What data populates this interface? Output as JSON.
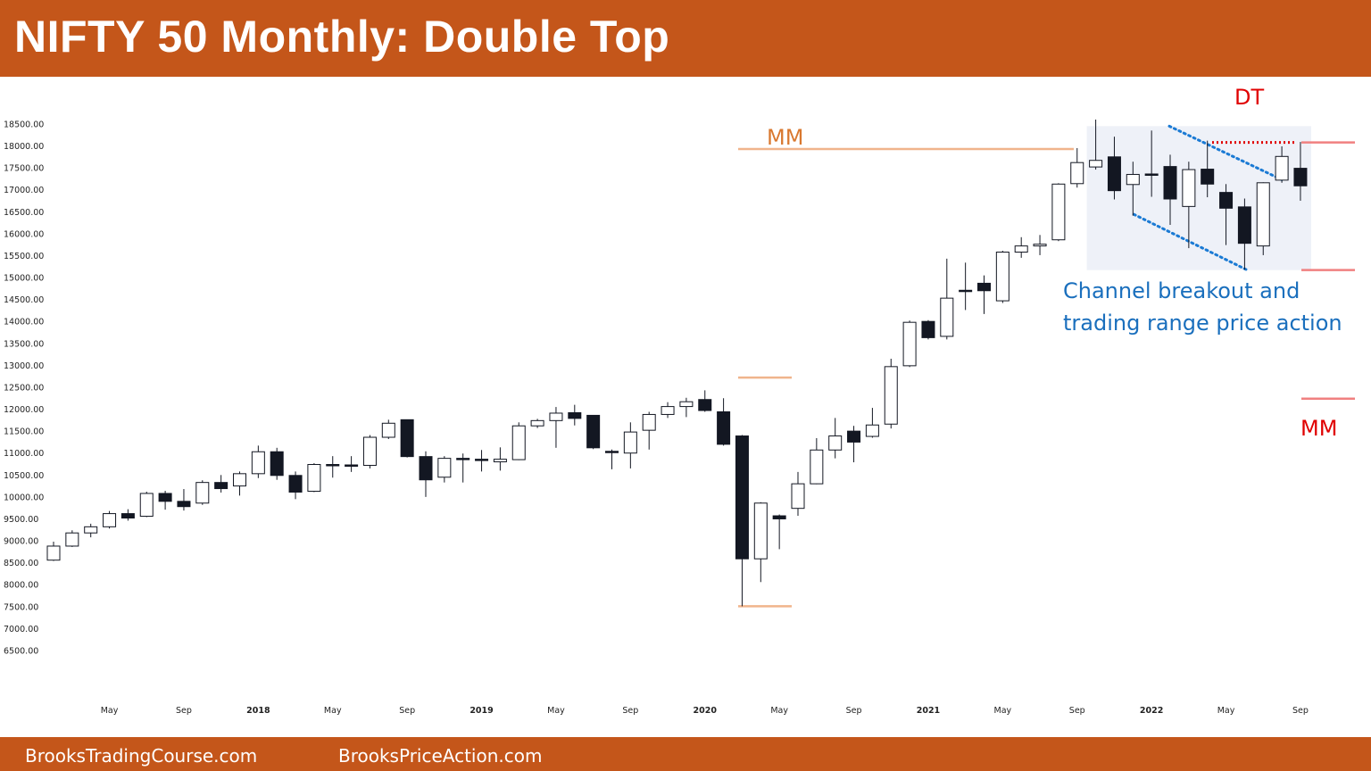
{
  "header": {
    "title": "NIFTY 50 Monthly: Double Top"
  },
  "footer": {
    "left": "BrooksTradingCourse.com",
    "right": "BrooksPriceAction.com"
  },
  "colors": {
    "bar_bg": "#c4561a",
    "bear_body": "#131722",
    "bull_body": "#ffffff",
    "mm_orange": "#f0b48c",
    "mm_red": "#f08080",
    "channel_blue": "#1a7ad4",
    "dt_red": "#e00000",
    "annotation_blue": "#1a6fbd",
    "range_box": "#eef1f8"
  },
  "chart_data": {
    "type": "candlestick",
    "timeframe": "monthly",
    "y_ticks": [
      "6500.00",
      "7000.00",
      "7500.00",
      "8000.00",
      "8500.00",
      "9000.00",
      "9500.00",
      "10000.00",
      "10500.00",
      "11000.00",
      "11500.00",
      "12000.00",
      "12500.00",
      "13000.00",
      "13500.00",
      "14000.00",
      "14500.00",
      "15000.00",
      "15500.00",
      "16000.00",
      "16500.00",
      "17000.00",
      "17500.00",
      "18000.00",
      "18500.00"
    ],
    "ylim": [
      6350,
      18600
    ],
    "x_ticks": [
      {
        "label": "May",
        "index": 3
      },
      {
        "label": "Sep",
        "index": 7
      },
      {
        "label": "2018",
        "index": 11
      },
      {
        "label": "May",
        "index": 15
      },
      {
        "label": "Sep",
        "index": 19
      },
      {
        "label": "2019",
        "index": 23
      },
      {
        "label": "May",
        "index": 27
      },
      {
        "label": "Sep",
        "index": 31
      },
      {
        "label": "2020",
        "index": 35
      },
      {
        "label": "May",
        "index": 39
      },
      {
        "label": "Sep",
        "index": 43
      },
      {
        "label": "2021",
        "index": 47
      },
      {
        "label": "May",
        "index": 51
      },
      {
        "label": "Sep",
        "index": 55
      },
      {
        "label": "2022",
        "index": 59
      },
      {
        "label": "May",
        "index": 63
      },
      {
        "label": "Sep",
        "index": 67
      }
    ],
    "candles": [
      [
        8560,
        8980,
        8540,
        8880
      ],
      [
        8880,
        9240,
        8860,
        9180
      ],
      [
        9180,
        9390,
        9080,
        9320
      ],
      [
        9320,
        9680,
        9280,
        9620
      ],
      [
        9620,
        9720,
        9460,
        9520
      ],
      [
        9560,
        10120,
        9540,
        10080
      ],
      [
        10080,
        10140,
        9710,
        9900
      ],
      [
        9900,
        10180,
        9690,
        9780
      ],
      [
        9860,
        10380,
        9820,
        10330
      ],
      [
        10330,
        10500,
        10100,
        10190
      ],
      [
        10250,
        10580,
        10030,
        10530
      ],
      [
        10530,
        11170,
        10430,
        11030
      ],
      [
        11030,
        11120,
        10390,
        10490
      ],
      [
        10490,
        10580,
        9950,
        10110
      ],
      [
        10130,
        10770,
        10110,
        10740
      ],
      [
        10740,
        10930,
        10440,
        10710
      ],
      [
        10730,
        10930,
        10570,
        10720
      ],
      [
        10720,
        11410,
        10650,
        11360
      ],
      [
        11360,
        11760,
        11320,
        11680
      ],
      [
        11760,
        11760,
        10900,
        10920
      ],
      [
        10920,
        11040,
        10000,
        10390
      ],
      [
        10450,
        10930,
        10330,
        10880
      ],
      [
        10880,
        10990,
        10330,
        10860
      ],
      [
        10860,
        11070,
        10580,
        10840
      ],
      [
        10800,
        11130,
        10600,
        10860
      ],
      [
        10850,
        11700,
        10840,
        11620
      ],
      [
        11620,
        11780,
        11570,
        11740
      ],
      [
        11740,
        12050,
        11120,
        11910
      ],
      [
        11920,
        12100,
        11630,
        11790
      ],
      [
        11860,
        11860,
        11090,
        11120
      ],
      [
        11040,
        11080,
        10630,
        11020
      ],
      [
        11000,
        11700,
        10650,
        11480
      ],
      [
        11520,
        11940,
        11080,
        11880
      ],
      [
        11880,
        12160,
        11800,
        12060
      ],
      [
        12060,
        12260,
        11820,
        12170
      ],
      [
        12220,
        12430,
        11940,
        11970
      ],
      [
        11940,
        12250,
        11170,
        11200
      ],
      [
        11390,
        11410,
        7510,
        8590
      ],
      [
        8590,
        9880,
        8060,
        9860
      ],
      [
        9570,
        9600,
        8810,
        9500
      ],
      [
        9740,
        10570,
        9570,
        10300
      ],
      [
        10300,
        11340,
        10290,
        11070
      ],
      [
        11070,
        11800,
        10880,
        11390
      ],
      [
        11500,
        11620,
        10790,
        11250
      ],
      [
        11380,
        12030,
        11350,
        11640
      ],
      [
        11660,
        13150,
        11560,
        12970
      ],
      [
        12990,
        14020,
        12960,
        13980
      ],
      [
        14000,
        14030,
        13590,
        13630
      ],
      [
        13660,
        15430,
        13590,
        14530
      ],
      [
        14710,
        15340,
        14260,
        14690
      ],
      [
        14870,
        15050,
        14170,
        14700
      ],
      [
        14470,
        15610,
        14420,
        15580
      ],
      [
        15580,
        15920,
        15450,
        15720
      ],
      [
        15720,
        15970,
        15510,
        15760
      ],
      [
        15860,
        17150,
        15830,
        17130
      ],
      [
        17140,
        17950,
        17050,
        17620
      ],
      [
        17520,
        18600,
        17460,
        17670
      ],
      [
        17750,
        18210,
        16780,
        16980
      ],
      [
        17120,
        17640,
        16410,
        17350
      ],
      [
        17360,
        18350,
        16840,
        17340
      ],
      [
        17530,
        17800,
        16200,
        16790
      ],
      [
        16620,
        17640,
        15670,
        17460
      ],
      [
        17470,
        18120,
        16830,
        17130
      ],
      [
        16940,
        17130,
        15740,
        16580
      ],
      [
        16610,
        16800,
        15180,
        15780
      ],
      [
        15720,
        17170,
        15510,
        17160
      ],
      [
        17220,
        17990,
        17160,
        17760
      ],
      [
        17490,
        18090,
        16750,
        17090
      ]
    ],
    "annotations": {
      "mm_top_label": "MM",
      "mm_bottom_label": "MM",
      "dt_label": "DT",
      "note_line1": "Channel breakout and",
      "note_line2": "trading range price action",
      "mm_top_level": 17930,
      "mm_lower_level": 12720,
      "covid_low_level": 7510,
      "dt_level": 18080,
      "red_top_level": 18080,
      "red_mid_level": 15170,
      "red_bottom_level": 12240,
      "range_box_top": 18450,
      "range_box_bottom": 15170
    }
  }
}
